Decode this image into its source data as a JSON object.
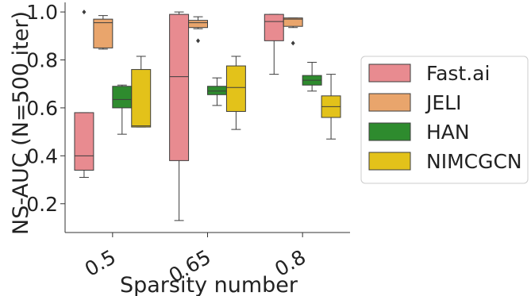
{
  "chart_data": {
    "type": "box",
    "title": "",
    "xlabel": "Sparsity number",
    "ylabel": "NS-AUC (N=500 iter)",
    "categories": [
      "0.5",
      "0.65",
      "0.8"
    ],
    "ylim": [
      0.08,
      1.04
    ],
    "yticks": [
      "0.2",
      "0.4",
      "0.6",
      "0.8",
      "1.0"
    ],
    "legend_position": "right",
    "series": [
      {
        "name": "Fast.ai",
        "color": "#e88b90",
        "boxes": [
          {
            "whislo": 0.31,
            "q1": 0.34,
            "med": 0.4,
            "q3": 0.58,
            "whishi": 0.58,
            "fliers": [
              1.0
            ]
          },
          {
            "whislo": 0.13,
            "q1": 0.38,
            "med": 0.73,
            "q3": 0.99,
            "whishi": 1.0,
            "fliers": []
          },
          {
            "whislo": 0.74,
            "q1": 0.88,
            "med": 0.96,
            "q3": 0.99,
            "whishi": 0.99,
            "fliers": []
          }
        ]
      },
      {
        "name": "JELI",
        "color": "#e9a56c",
        "boxes": [
          {
            "whislo": 0.845,
            "q1": 0.85,
            "med": 0.955,
            "q3": 0.97,
            "whishi": 0.985,
            "fliers": []
          },
          {
            "whislo": 0.93,
            "q1": 0.935,
            "med": 0.955,
            "q3": 0.965,
            "whishi": 0.98,
            "fliers": [
              0.88
            ]
          },
          {
            "whislo": 0.935,
            "q1": 0.94,
            "med": 0.97,
            "q3": 0.975,
            "whishi": 0.975,
            "fliers": [
              0.87
            ]
          }
        ]
      },
      {
        "name": "HAN",
        "color": "#2e8b2e",
        "boxes": [
          {
            "whislo": 0.49,
            "q1": 0.6,
            "med": 0.635,
            "q3": 0.69,
            "whishi": 0.695,
            "fliers": []
          },
          {
            "whislo": 0.61,
            "q1": 0.655,
            "med": 0.67,
            "q3": 0.69,
            "whishi": 0.725,
            "fliers": []
          },
          {
            "whislo": 0.67,
            "q1": 0.695,
            "med": 0.715,
            "q3": 0.735,
            "whishi": 0.79,
            "fliers": []
          }
        ]
      },
      {
        "name": "NIMCGCN",
        "color": "#e3c21a",
        "boxes": [
          {
            "whislo": 0.52,
            "q1": 0.52,
            "med": 0.525,
            "q3": 0.76,
            "whishi": 0.815,
            "fliers": []
          },
          {
            "whislo": 0.51,
            "q1": 0.585,
            "med": 0.685,
            "q3": 0.775,
            "whishi": 0.815,
            "fliers": []
          },
          {
            "whislo": 0.47,
            "q1": 0.56,
            "med": 0.605,
            "q3": 0.65,
            "whishi": 0.74,
            "fliers": []
          }
        ]
      }
    ]
  }
}
